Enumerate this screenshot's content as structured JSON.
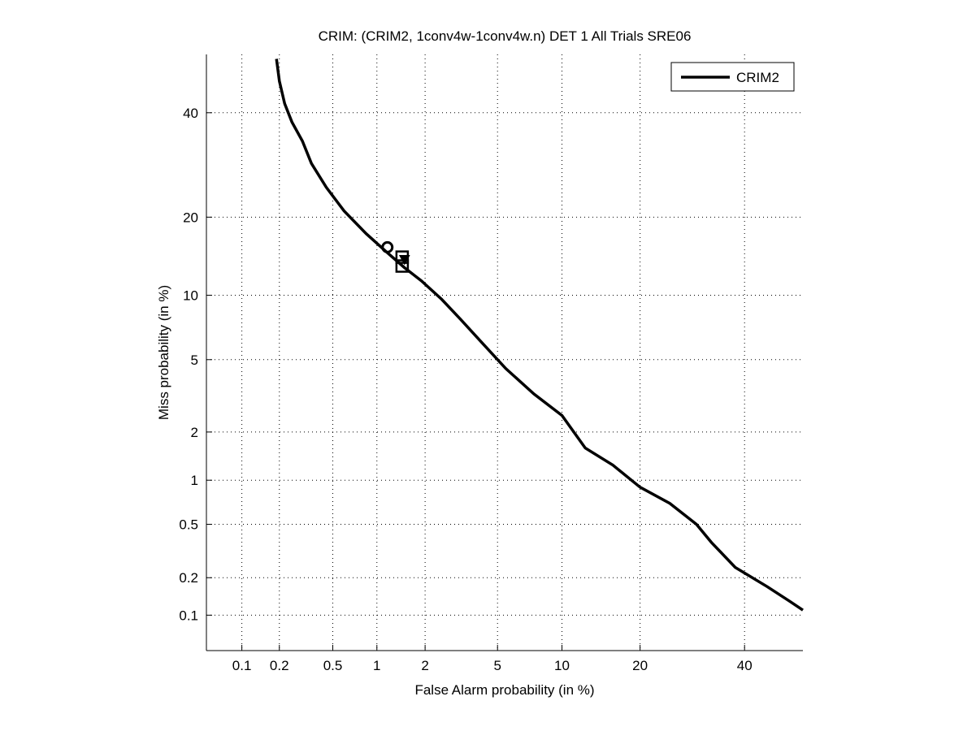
{
  "chart_data": {
    "type": "line",
    "title": "CRIM: (CRIM2, 1conv4w-1conv4w.n) DET 1 All Trials SRE06",
    "xlabel": "False Alarm probability (in %)",
    "ylabel": "Miss probability (in %)",
    "xscale": "probit",
    "yscale": "probit",
    "xlim": [
      0.05,
      53
    ],
    "ylim": [
      0.05,
      53
    ],
    "xticks": [
      0.1,
      0.2,
      0.5,
      1,
      2,
      5,
      10,
      20,
      40
    ],
    "xtick_labels": [
      "0.1",
      "0.2",
      "0.5",
      "1",
      "2",
      "5",
      "10",
      "20",
      "40"
    ],
    "yticks": [
      0.1,
      0.2,
      0.5,
      1,
      2,
      5,
      10,
      20,
      40
    ],
    "ytick_labels": [
      "0.1",
      "0.2",
      "0.5",
      "1",
      "2",
      "5",
      "10",
      "20",
      "40"
    ],
    "grid": true,
    "legend_position": "top-right",
    "series": [
      {
        "name": "CRIM2",
        "color": "#000000",
        "x": [
          0.19,
          0.2,
          0.22,
          0.25,
          0.3,
          0.35,
          0.45,
          0.6,
          0.85,
          1.15,
          1.5,
          1.9,
          2.5,
          3.2,
          4.2,
          5.5,
          7.5,
          10,
          12.5,
          16,
          20,
          25,
          30,
          33,
          38,
          45,
          50,
          53
        ],
        "y": [
          52,
          47,
          42,
          38,
          34,
          29.5,
          25,
          21,
          17.5,
          15,
          13,
          11.5,
          9.6,
          7.8,
          6.0,
          4.5,
          3.3,
          2.5,
          1.6,
          1.25,
          0.9,
          0.7,
          0.5,
          0.37,
          0.24,
          0.17,
          0.13,
          0.11
        ]
      }
    ],
    "markers": [
      {
        "shape": "circle",
        "x": 1.17,
        "y": 15.6
      },
      {
        "shape": "square",
        "x": 1.45,
        "y": 14.3
      },
      {
        "shape": "square",
        "x": 1.45,
        "y": 13.2
      },
      {
        "shape": "triangle-down",
        "x": 1.5,
        "y": 14.0
      }
    ]
  }
}
